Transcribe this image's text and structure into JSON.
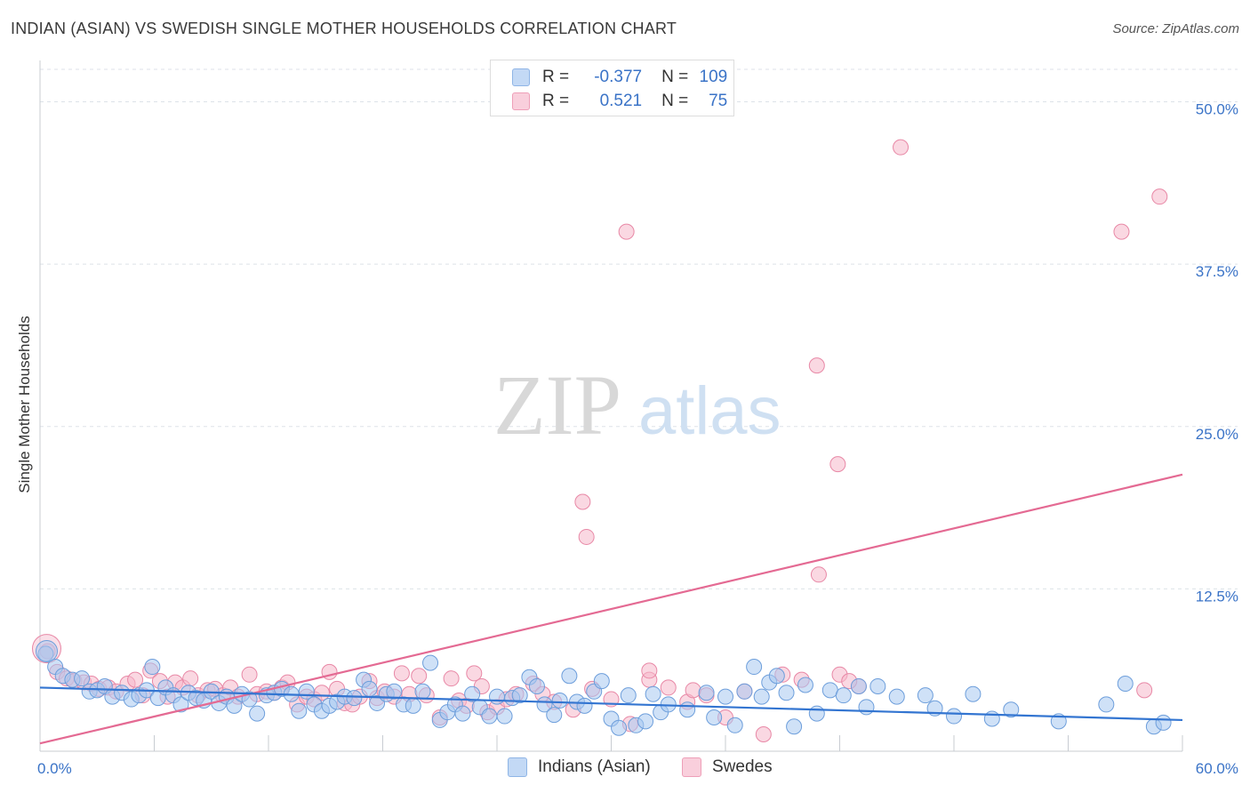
{
  "title": "INDIAN (ASIAN) VS SWEDISH SINGLE MOTHER HOUSEHOLDS CORRELATION CHART",
  "source": "Source: ZipAtlas.com",
  "watermark": {
    "zip": "ZIP",
    "atlas": "atlas"
  },
  "legend": {
    "rows": [
      {
        "r_label": "R =",
        "r_value": "-0.377",
        "n_label": "N =",
        "n_value": "109",
        "color": "#a8c8f0"
      },
      {
        "r_label": "R =",
        "r_value": "0.521",
        "n_label": "N =",
        "n_value": "75",
        "color": "#f5b8cb"
      }
    ]
  },
  "bottom_legend": {
    "indians": "Indians (Asian)",
    "swedes": "Swedes"
  },
  "colors": {
    "indian_fill": "#a8c8f0",
    "indian_stroke": "#6d9edb",
    "indian_line": "#3375d1",
    "swede_fill": "#f5b8cb",
    "swede_stroke": "#e888a6",
    "swede_line": "#e46a93",
    "axis_text": "#3a73c7",
    "grid": "#dde2e8"
  },
  "chart_data": {
    "type": "scatter",
    "title": "INDIAN (ASIAN) VS SWEDISH SINGLE MOTHER HOUSEHOLDS CORRELATION CHART",
    "xlabel": "",
    "ylabel": "Single Mother Households",
    "xlim": [
      0,
      60
    ],
    "ylim": [
      0,
      52.5
    ],
    "x_tick_labels": [
      "0.0%",
      "60.0%"
    ],
    "y_ticks": [
      12.5,
      25.0,
      37.5,
      50.0
    ],
    "y_tick_labels": [
      "12.5%",
      "25.0%",
      "37.5%",
      "50.0%"
    ],
    "grid": true,
    "series": [
      {
        "name": "Indians (Asian)",
        "R": -0.377,
        "N": 109,
        "trend": {
          "x": [
            0,
            60
          ],
          "y": [
            4.9,
            2.4
          ]
        },
        "points": [
          [
            0.3,
            7.5
          ],
          [
            0.8,
            6.5
          ],
          [
            1.2,
            5.8
          ],
          [
            1.7,
            5.5
          ],
          [
            2.2,
            5.6
          ],
          [
            2.6,
            4.6
          ],
          [
            3.0,
            4.7
          ],
          [
            3.4,
            5.0
          ],
          [
            3.8,
            4.2
          ],
          [
            4.3,
            4.5
          ],
          [
            4.8,
            4.0
          ],
          [
            5.2,
            4.3
          ],
          [
            5.6,
            4.7
          ],
          [
            5.9,
            6.5
          ],
          [
            6.2,
            4.1
          ],
          [
            6.6,
            4.9
          ],
          [
            7.0,
            4.3
          ],
          [
            7.4,
            3.6
          ],
          [
            7.8,
            4.5
          ],
          [
            8.2,
            4.1
          ],
          [
            8.6,
            3.9
          ],
          [
            9.0,
            4.6
          ],
          [
            9.4,
            3.7
          ],
          [
            9.8,
            4.2
          ],
          [
            10.2,
            3.5
          ],
          [
            10.6,
            4.4
          ],
          [
            11.0,
            4.0
          ],
          [
            11.4,
            2.9
          ],
          [
            11.9,
            4.3
          ],
          [
            12.3,
            4.5
          ],
          [
            12.7,
            4.8
          ],
          [
            13.2,
            4.4
          ],
          [
            13.6,
            3.1
          ],
          [
            14.0,
            4.6
          ],
          [
            14.4,
            3.6
          ],
          [
            14.8,
            3.1
          ],
          [
            15.2,
            3.5
          ],
          [
            15.6,
            3.8
          ],
          [
            16.0,
            4.2
          ],
          [
            16.5,
            4.1
          ],
          [
            17.0,
            5.5
          ],
          [
            17.3,
            4.8
          ],
          [
            17.7,
            3.7
          ],
          [
            18.2,
            4.4
          ],
          [
            18.6,
            4.6
          ],
          [
            19.1,
            3.6
          ],
          [
            19.6,
            3.5
          ],
          [
            20.1,
            4.6
          ],
          [
            20.5,
            6.8
          ],
          [
            21.0,
            2.4
          ],
          [
            21.4,
            3.0
          ],
          [
            21.8,
            3.6
          ],
          [
            22.2,
            2.9
          ],
          [
            22.7,
            4.4
          ],
          [
            23.1,
            3.4
          ],
          [
            23.6,
            2.7
          ],
          [
            24.0,
            4.2
          ],
          [
            24.4,
            2.7
          ],
          [
            24.8,
            4.1
          ],
          [
            25.2,
            4.3
          ],
          [
            25.7,
            5.7
          ],
          [
            26.1,
            5.0
          ],
          [
            26.5,
            3.6
          ],
          [
            27.0,
            2.8
          ],
          [
            27.3,
            3.9
          ],
          [
            27.8,
            5.8
          ],
          [
            28.2,
            3.8
          ],
          [
            28.6,
            3.5
          ],
          [
            29.1,
            4.6
          ],
          [
            29.5,
            5.4
          ],
          [
            30.0,
            2.5
          ],
          [
            30.4,
            1.8
          ],
          [
            30.9,
            4.3
          ],
          [
            31.3,
            2.0
          ],
          [
            31.8,
            2.3
          ],
          [
            32.2,
            4.4
          ],
          [
            32.6,
            3.0
          ],
          [
            33.0,
            3.6
          ],
          [
            34.0,
            3.2
          ],
          [
            35.0,
            4.5
          ],
          [
            35.4,
            2.6
          ],
          [
            36.0,
            4.2
          ],
          [
            36.5,
            2.0
          ],
          [
            37.0,
            4.6
          ],
          [
            37.5,
            6.5
          ],
          [
            37.9,
            4.2
          ],
          [
            38.3,
            5.3
          ],
          [
            38.7,
            5.8
          ],
          [
            39.2,
            4.5
          ],
          [
            39.6,
            1.9
          ],
          [
            40.2,
            5.1
          ],
          [
            40.8,
            2.9
          ],
          [
            41.5,
            4.7
          ],
          [
            42.2,
            4.3
          ],
          [
            43.0,
            5.0
          ],
          [
            43.4,
            3.4
          ],
          [
            44.0,
            5.0
          ],
          [
            45.0,
            4.2
          ],
          [
            46.5,
            4.3
          ],
          [
            47.0,
            3.3
          ],
          [
            48.0,
            2.7
          ],
          [
            49.0,
            4.4
          ],
          [
            50.0,
            2.5
          ],
          [
            51.0,
            3.2
          ],
          [
            53.5,
            2.3
          ],
          [
            56.0,
            3.6
          ],
          [
            57.0,
            5.2
          ],
          [
            58.5,
            1.9
          ],
          [
            59.0,
            2.2
          ]
        ]
      },
      {
        "name": "Swedes",
        "R": 0.521,
        "N": 75,
        "trend": {
          "x": [
            0,
            60
          ],
          "y": [
            0.6,
            21.3
          ]
        },
        "points": [
          [
            0.4,
            7.7
          ],
          [
            0.9,
            6.1
          ],
          [
            1.4,
            5.6
          ],
          [
            1.8,
            5.4
          ],
          [
            2.3,
            5.3
          ],
          [
            2.7,
            5.2
          ],
          [
            3.1,
            4.8
          ],
          [
            3.6,
            4.9
          ],
          [
            4.0,
            4.6
          ],
          [
            4.6,
            5.2
          ],
          [
            5.0,
            5.5
          ],
          [
            5.4,
            4.3
          ],
          [
            5.8,
            6.2
          ],
          [
            6.3,
            5.4
          ],
          [
            6.7,
            4.2
          ],
          [
            7.1,
            5.3
          ],
          [
            7.5,
            4.9
          ],
          [
            7.9,
            5.6
          ],
          [
            8.3,
            4.3
          ],
          [
            8.8,
            4.7
          ],
          [
            9.2,
            4.8
          ],
          [
            9.6,
            4.3
          ],
          [
            10.0,
            4.9
          ],
          [
            10.4,
            4.2
          ],
          [
            11.0,
            5.9
          ],
          [
            11.4,
            4.4
          ],
          [
            11.9,
            4.6
          ],
          [
            12.3,
            4.5
          ],
          [
            12.7,
            4.9
          ],
          [
            13.0,
            5.3
          ],
          [
            13.5,
            3.6
          ],
          [
            14.0,
            4.2
          ],
          [
            14.4,
            4.0
          ],
          [
            14.8,
            4.5
          ],
          [
            15.2,
            6.1
          ],
          [
            15.6,
            4.8
          ],
          [
            16.0,
            3.7
          ],
          [
            16.4,
            3.6
          ],
          [
            16.8,
            4.2
          ],
          [
            17.3,
            5.4
          ],
          [
            17.7,
            4.1
          ],
          [
            18.1,
            4.6
          ],
          [
            18.6,
            4.2
          ],
          [
            19.0,
            6.0
          ],
          [
            19.4,
            4.4
          ],
          [
            19.9,
            5.8
          ],
          [
            20.3,
            4.3
          ],
          [
            21.0,
            2.6
          ],
          [
            21.6,
            5.6
          ],
          [
            22.0,
            3.9
          ],
          [
            22.4,
            3.5
          ],
          [
            22.8,
            6.0
          ],
          [
            23.2,
            5.0
          ],
          [
            23.5,
            3.0
          ],
          [
            24.0,
            3.4
          ],
          [
            24.5,
            4.0
          ],
          [
            25.0,
            4.4
          ],
          [
            25.9,
            5.2
          ],
          [
            26.4,
            4.4
          ],
          [
            27.0,
            3.8
          ],
          [
            28.0,
            3.2
          ],
          [
            29.0,
            4.8
          ],
          [
            30.0,
            4.0
          ],
          [
            31.0,
            2.1
          ],
          [
            32.0,
            5.5
          ],
          [
            33.0,
            4.9
          ],
          [
            34.0,
            3.8
          ],
          [
            35.0,
            4.3
          ],
          [
            36.0,
            2.6
          ],
          [
            37.0,
            4.6
          ],
          [
            38.0,
            1.3
          ],
          [
            39.0,
            5.9
          ],
          [
            40.0,
            5.5
          ],
          [
            42.0,
            5.9
          ],
          [
            43.0,
            5.0
          ]
        ],
        "outliers": [
          [
            30.8,
            40.0
          ],
          [
            45.2,
            46.5
          ],
          [
            28.5,
            19.2
          ],
          [
            28.7,
            16.5
          ],
          [
            40.8,
            29.7
          ],
          [
            41.9,
            22.1
          ],
          [
            40.9,
            13.6
          ],
          [
            56.8,
            40.0
          ],
          [
            58.8,
            42.7
          ],
          [
            58.0,
            4.7
          ],
          [
            32.0,
            6.2
          ],
          [
            34.3,
            4.7
          ],
          [
            42.5,
            5.4
          ]
        ]
      }
    ]
  }
}
